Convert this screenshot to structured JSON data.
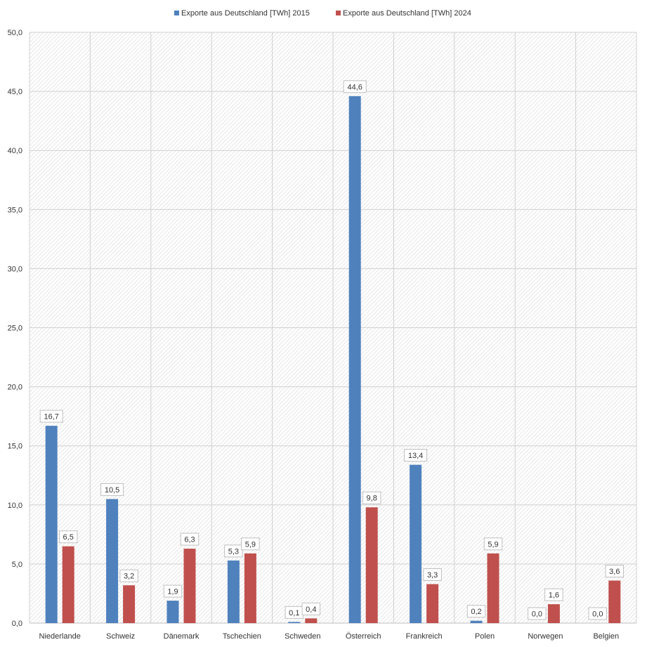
{
  "chart_data": {
    "type": "bar",
    "categories": [
      "Niederlande",
      "Schweiz",
      "Dänemark",
      "Tschechien",
      "Schweden",
      "Österreich",
      "Frankreich",
      "Polen",
      "Norwegen",
      "Belgien"
    ],
    "series": [
      {
        "name": "Exporte aus Deutschland [TWh] 2015",
        "color": "#4f81bd",
        "values": [
          16.7,
          10.5,
          1.9,
          5.3,
          0.1,
          44.6,
          13.4,
          0.2,
          0.0,
          0.0
        ],
        "labels": [
          "16,7",
          "10,5",
          "1,9",
          "5,3",
          "0,1",
          "44,6",
          "13,4",
          "0,2",
          "0,0",
          "0,0"
        ]
      },
      {
        "name": "Exporte aus Deutschland [TWh] 2024",
        "color": "#c0504d",
        "values": [
          6.5,
          3.2,
          6.3,
          5.9,
          0.4,
          9.8,
          3.3,
          5.9,
          1.6,
          3.6
        ],
        "labels": [
          "6,5",
          "3,2",
          "6,3",
          "5,9",
          "0,4",
          "9,8",
          "3,3",
          "5,9",
          "1,6",
          "3,6"
        ]
      }
    ],
    "yticks": [
      0,
      5,
      10,
      15,
      20,
      25,
      30,
      35,
      40,
      45,
      50
    ],
    "ytick_labels": [
      "0,0",
      "5,0",
      "10,0",
      "15,0",
      "20,0",
      "25,0",
      "30,0",
      "35,0",
      "40,0",
      "45,0",
      "50,0"
    ],
    "ylim": [
      0,
      50
    ],
    "title": "",
    "xlabel": "",
    "ylabel": "",
    "grid": true,
    "legend_position": "top-center"
  }
}
